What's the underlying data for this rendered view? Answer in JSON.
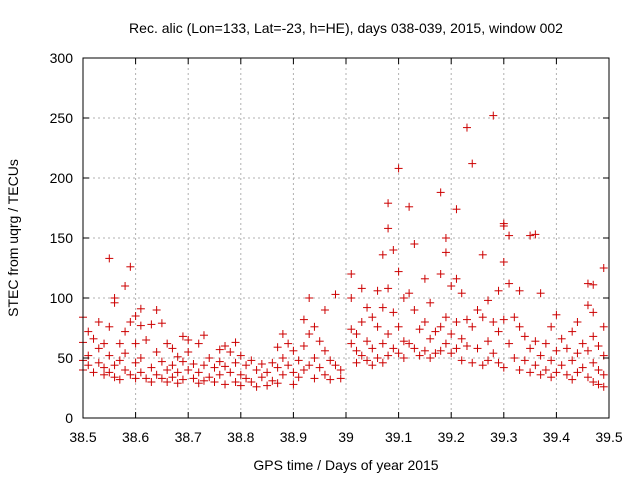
{
  "chart_data": {
    "type": "scatter",
    "title": "Rec. alic (Lon=133, Lat=-23, h=HE), days 038-039, 2015, window 002",
    "xlabel": "GPS time / Days of year 2015",
    "ylabel": "STEC from uqrg / TECUs",
    "xlim": [
      38.5,
      39.5
    ],
    "ylim": [
      0,
      300
    ],
    "xticks": [
      "38.5",
      "38.6",
      "38.7",
      "38.8",
      "38.9",
      "39",
      "39.1",
      "39.2",
      "39.3",
      "39.4",
      "39.5"
    ],
    "yticks": [
      "0",
      "50",
      "100",
      "150",
      "200",
      "250",
      "300"
    ],
    "grid": true,
    "marker": "+",
    "color": "#cc0000",
    "series": [
      {
        "name": "STEC",
        "points": [
          [
            38.5,
            84
          ],
          [
            38.5,
            63
          ],
          [
            38.5,
            48
          ],
          [
            38.5,
            40
          ],
          [
            38.51,
            72
          ],
          [
            38.51,
            52
          ],
          [
            38.51,
            44
          ],
          [
            38.52,
            38
          ],
          [
            38.52,
            66
          ],
          [
            38.53,
            80
          ],
          [
            38.53,
            58
          ],
          [
            38.53,
            46
          ],
          [
            38.54,
            36
          ],
          [
            38.54,
            62
          ],
          [
            38.54,
            42
          ],
          [
            38.55,
            133
          ],
          [
            38.55,
            76
          ],
          [
            38.55,
            52
          ],
          [
            38.55,
            38
          ],
          [
            38.56,
            44
          ],
          [
            38.56,
            34
          ],
          [
            38.56,
            100
          ],
          [
            38.56,
            96
          ],
          [
            38.57,
            62
          ],
          [
            38.57,
            48
          ],
          [
            38.57,
            32
          ],
          [
            38.58,
            110
          ],
          [
            38.58,
            72
          ],
          [
            38.58,
            54
          ],
          [
            38.58,
            40
          ],
          [
            38.59,
            126
          ],
          [
            38.59,
            80
          ],
          [
            38.59,
            36
          ],
          [
            38.6,
            85
          ],
          [
            38.6,
            62
          ],
          [
            38.6,
            46
          ],
          [
            38.6,
            33
          ],
          [
            38.61,
            91
          ],
          [
            38.61,
            77
          ],
          [
            38.61,
            50
          ],
          [
            38.61,
            38
          ],
          [
            38.62,
            33
          ],
          [
            38.62,
            65
          ],
          [
            38.63,
            78
          ],
          [
            38.63,
            42
          ],
          [
            38.63,
            30
          ],
          [
            38.64,
            90
          ],
          [
            38.64,
            55
          ],
          [
            38.64,
            36
          ],
          [
            38.65,
            79
          ],
          [
            38.65,
            47
          ],
          [
            38.65,
            33
          ],
          [
            38.66,
            62
          ],
          [
            38.66,
            40
          ],
          [
            38.66,
            30
          ],
          [
            38.67,
            58
          ],
          [
            38.67,
            44
          ],
          [
            38.67,
            34
          ],
          [
            38.68,
            51
          ],
          [
            38.68,
            38
          ],
          [
            38.68,
            29
          ],
          [
            38.69,
            68
          ],
          [
            38.69,
            47
          ],
          [
            38.69,
            32
          ],
          [
            38.7,
            65
          ],
          [
            38.7,
            55
          ],
          [
            38.7,
            40
          ],
          [
            38.71,
            45
          ],
          [
            38.71,
            33
          ],
          [
            38.72,
            62
          ],
          [
            38.72,
            38
          ],
          [
            38.72,
            29
          ],
          [
            38.73,
            69
          ],
          [
            38.73,
            44
          ],
          [
            38.73,
            31
          ],
          [
            38.74,
            50
          ],
          [
            38.74,
            34
          ],
          [
            38.75,
            42
          ],
          [
            38.75,
            30
          ],
          [
            38.76,
            57
          ],
          [
            38.76,
            47
          ],
          [
            38.76,
            36
          ],
          [
            38.77,
            60
          ],
          [
            38.77,
            43
          ],
          [
            38.77,
            28
          ],
          [
            38.78,
            55
          ],
          [
            38.78,
            38
          ],
          [
            38.79,
            63
          ],
          [
            38.79,
            46
          ],
          [
            38.79,
            30
          ],
          [
            38.8,
            52
          ],
          [
            38.8,
            36
          ],
          [
            38.8,
            27
          ],
          [
            38.81,
            44
          ],
          [
            38.81,
            33
          ],
          [
            38.82,
            48
          ],
          [
            38.82,
            30
          ],
          [
            38.83,
            40
          ],
          [
            38.83,
            26
          ],
          [
            38.84,
            45
          ],
          [
            38.84,
            34
          ],
          [
            38.85,
            38
          ],
          [
            38.85,
            27
          ],
          [
            38.86,
            46
          ],
          [
            38.86,
            31
          ],
          [
            38.87,
            59
          ],
          [
            38.87,
            42
          ],
          [
            38.87,
            29
          ],
          [
            38.88,
            70
          ],
          [
            38.88,
            50
          ],
          [
            38.88,
            36
          ],
          [
            38.89,
            62
          ],
          [
            38.89,
            44
          ],
          [
            38.9,
            56
          ],
          [
            38.9,
            38
          ],
          [
            38.9,
            28
          ],
          [
            38.91,
            48
          ],
          [
            38.91,
            34
          ],
          [
            38.92,
            82
          ],
          [
            38.92,
            60
          ],
          [
            38.92,
            40
          ],
          [
            38.93,
            100
          ],
          [
            38.93,
            70
          ],
          [
            38.93,
            44
          ],
          [
            38.94,
            76
          ],
          [
            38.94,
            50
          ],
          [
            38.94,
            33
          ],
          [
            38.95,
            64
          ],
          [
            38.95,
            42
          ],
          [
            38.96,
            90
          ],
          [
            38.96,
            56
          ],
          [
            38.96,
            36
          ],
          [
            38.97,
            48
          ],
          [
            38.97,
            32
          ],
          [
            38.98,
            103
          ],
          [
            38.98,
            44
          ],
          [
            38.99,
            40
          ],
          [
            38.99,
            33
          ],
          [
            39.01,
            120
          ],
          [
            39.01,
            100
          ],
          [
            39.01,
            74
          ],
          [
            39.01,
            62
          ],
          [
            39.02,
            70
          ],
          [
            39.02,
            56
          ],
          [
            39.02,
            46
          ],
          [
            39.03,
            108
          ],
          [
            39.03,
            80
          ],
          [
            39.03,
            52
          ],
          [
            39.04,
            92
          ],
          [
            39.04,
            64
          ],
          [
            39.04,
            48
          ],
          [
            39.05,
            84
          ],
          [
            39.05,
            58
          ],
          [
            39.05,
            44
          ],
          [
            39.06,
            106
          ],
          [
            39.06,
            76
          ],
          [
            39.06,
            50
          ],
          [
            39.07,
            136
          ],
          [
            39.07,
            92
          ],
          [
            39.07,
            62
          ],
          [
            39.07,
            46
          ],
          [
            39.08,
            179
          ],
          [
            39.08,
            158
          ],
          [
            39.08,
            108
          ],
          [
            39.08,
            70
          ],
          [
            39.08,
            52
          ],
          [
            39.09,
            140
          ],
          [
            39.09,
            88
          ],
          [
            39.09,
            58
          ],
          [
            39.1,
            208
          ],
          [
            39.1,
            122
          ],
          [
            39.1,
            76
          ],
          [
            39.1,
            54
          ],
          [
            39.11,
            100
          ],
          [
            39.11,
            64
          ],
          [
            39.11,
            50
          ],
          [
            39.12,
            176
          ],
          [
            39.12,
            104
          ],
          [
            39.12,
            62
          ],
          [
            39.13,
            145
          ],
          [
            39.13,
            90
          ],
          [
            39.13,
            58
          ],
          [
            39.14,
            74
          ],
          [
            39.14,
            52
          ],
          [
            39.15,
            116
          ],
          [
            39.15,
            80
          ],
          [
            39.15,
            56
          ],
          [
            39.16,
            96
          ],
          [
            39.16,
            66
          ],
          [
            39.16,
            50
          ],
          [
            39.17,
            72
          ],
          [
            39.17,
            54
          ],
          [
            39.18,
            188
          ],
          [
            39.18,
            120
          ],
          [
            39.18,
            76
          ],
          [
            39.18,
            56
          ],
          [
            39.19,
            150
          ],
          [
            39.19,
            138
          ],
          [
            39.19,
            84
          ],
          [
            39.19,
            62
          ],
          [
            39.2,
            110
          ],
          [
            39.2,
            70
          ],
          [
            39.2,
            54
          ],
          [
            39.21,
            174
          ],
          [
            39.21,
            116
          ],
          [
            39.21,
            80
          ],
          [
            39.21,
            58
          ],
          [
            39.22,
            104
          ],
          [
            39.22,
            66
          ],
          [
            39.22,
            48
          ],
          [
            39.23,
            242
          ],
          [
            39.23,
            82
          ],
          [
            39.23,
            60
          ],
          [
            39.24,
            212
          ],
          [
            39.24,
            76
          ],
          [
            39.24,
            46
          ],
          [
            39.25,
            90
          ],
          [
            39.25,
            58
          ],
          [
            39.26,
            136
          ],
          [
            39.26,
            84
          ],
          [
            39.26,
            44
          ],
          [
            39.27,
            98
          ],
          [
            39.27,
            64
          ],
          [
            39.27,
            48
          ],
          [
            39.28,
            252
          ],
          [
            39.28,
            80
          ],
          [
            39.28,
            54
          ],
          [
            39.29,
            106
          ],
          [
            39.29,
            72
          ],
          [
            39.29,
            46
          ],
          [
            39.3,
            162
          ],
          [
            39.3,
            160
          ],
          [
            39.3,
            130
          ],
          [
            39.3,
            82
          ],
          [
            39.3,
            42
          ],
          [
            39.31,
            152
          ],
          [
            39.31,
            112
          ],
          [
            39.31,
            62
          ],
          [
            39.32,
            84
          ],
          [
            39.32,
            50
          ],
          [
            39.33,
            106
          ],
          [
            39.33,
            76
          ],
          [
            39.33,
            40
          ],
          [
            39.34,
            68
          ],
          [
            39.34,
            48
          ],
          [
            39.35,
            152
          ],
          [
            39.35,
            58
          ],
          [
            39.35,
            38
          ],
          [
            39.36,
            153
          ],
          [
            39.36,
            64
          ],
          [
            39.36,
            44
          ],
          [
            39.37,
            104
          ],
          [
            39.37,
            52
          ],
          [
            39.37,
            36
          ],
          [
            39.38,
            62
          ],
          [
            39.38,
            40
          ],
          [
            39.39,
            76
          ],
          [
            39.39,
            48
          ],
          [
            39.39,
            34
          ],
          [
            39.4,
            86
          ],
          [
            39.4,
            56
          ],
          [
            39.4,
            38
          ],
          [
            39.41,
            66
          ],
          [
            39.41,
            44
          ],
          [
            39.42,
            58
          ],
          [
            39.42,
            36
          ],
          [
            39.43,
            72
          ],
          [
            39.43,
            48
          ],
          [
            39.43,
            32
          ],
          [
            39.44,
            80
          ],
          [
            39.44,
            54
          ],
          [
            39.44,
            38
          ],
          [
            39.45,
            62
          ],
          [
            39.45,
            42
          ],
          [
            39.46,
            112
          ],
          [
            39.46,
            94
          ],
          [
            39.46,
            56
          ],
          [
            39.46,
            34
          ],
          [
            39.47,
            111
          ],
          [
            39.47,
            88
          ],
          [
            39.47,
            68
          ],
          [
            39.47,
            46
          ],
          [
            39.47,
            30
          ],
          [
            39.48,
            60
          ],
          [
            39.48,
            40
          ],
          [
            39.48,
            28
          ],
          [
            39.49,
            125
          ],
          [
            39.49,
            76
          ],
          [
            39.49,
            52
          ],
          [
            39.49,
            36
          ],
          [
            39.49,
            26
          ]
        ]
      }
    ]
  }
}
